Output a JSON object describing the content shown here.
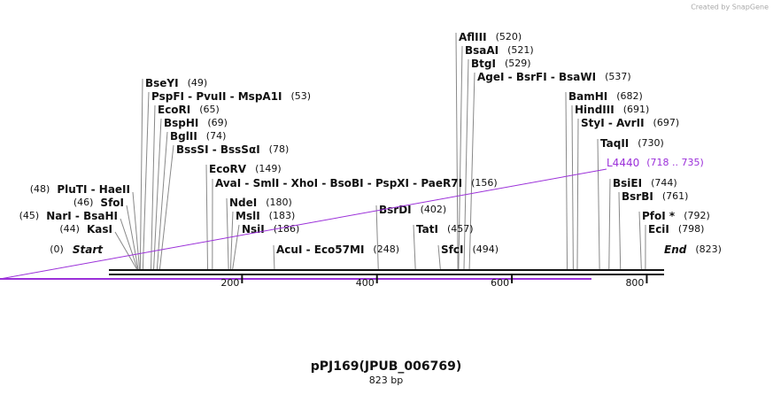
{
  "watermark": "Created by SnapGene",
  "title": "pPJ169(JPUB_006769)",
  "length": "823 bp",
  "enzymes": [
    {
      "name": "AflIII",
      "site": "(520)"
    },
    {
      "name": "BsaAI",
      "site": "(521)"
    },
    {
      "name": "BtgI",
      "site": "(529)"
    },
    {
      "name": "AgeI - BsrFI - BsaWI",
      "site": "(537)"
    },
    {
      "name": "BseYI",
      "site": "(49)"
    },
    {
      "name": "PspFI - PvuII - MspA1I",
      "site": "(53)"
    },
    {
      "name": "EcoRI",
      "site": "(65)"
    },
    {
      "name": "BspHI",
      "site": "(69)"
    },
    {
      "name": "BglII",
      "site": "(74)"
    },
    {
      "name": "BssSI - BssSαI",
      "site": "(78)"
    },
    {
      "name": "EcoRV",
      "site": "(149)"
    },
    {
      "name": "AvaI - SmlI - XhoI - BsoBI - PspXI - PaeR7I",
      "site": "(156)"
    },
    {
      "name": "NdeI",
      "site": "(180)"
    },
    {
      "name": "MslI",
      "site": "(183)"
    },
    {
      "name": "NsiI",
      "site": "(186)"
    },
    {
      "name": "AcuI - Eco57MI",
      "site": "(248)"
    },
    {
      "name": "BsrDI",
      "site": "(402)"
    },
    {
      "name": "TatI",
      "site": "(457)"
    },
    {
      "name": "SfcI",
      "site": "(494)"
    },
    {
      "name": "BamHI",
      "site": "(682)"
    },
    {
      "name": "HindIII",
      "site": "(691)"
    },
    {
      "name": "StyI - AvrII",
      "site": "(697)"
    },
    {
      "name": "TaqII",
      "site": "(730)"
    },
    {
      "name": "BsiEI",
      "site": "(744)"
    },
    {
      "name": "BsrBI",
      "site": "(761)"
    },
    {
      "name": "PfoI *",
      "site": "(792)"
    },
    {
      "name": "EciI",
      "site": "(798)"
    }
  ],
  "left_enzymes": [
    {
      "site": "(48)",
      "name": "PluTI - HaeII"
    },
    {
      "site": "(46)",
      "name": "SfoI"
    },
    {
      "site": "(45)",
      "name": "NarI - BsaHI"
    },
    {
      "site": "(44)",
      "name": "KasI"
    }
  ],
  "start": {
    "site": "(0)",
    "name": "Start"
  },
  "end": {
    "name": "End",
    "site": "(823)"
  },
  "feature": {
    "name": "L4440",
    "range": "(718 .. 735)"
  },
  "ruler": [
    "200",
    "400",
    "600",
    "800"
  ]
}
